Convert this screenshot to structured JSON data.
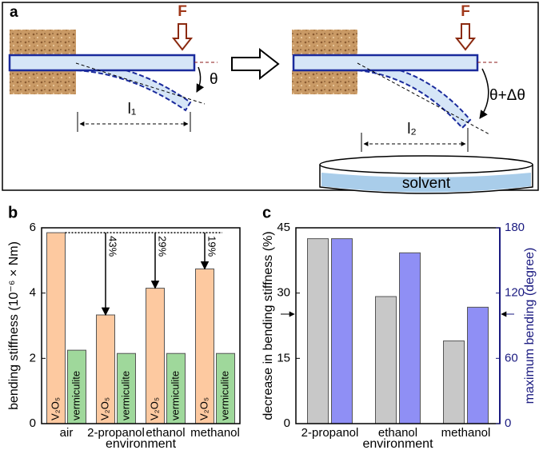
{
  "diagram": {
    "panel_label": "a",
    "force_left": "F",
    "angle_left": "θ",
    "length_left": "l₁",
    "force_right": "F",
    "angle_right": "θ+Δθ",
    "length_right": "l₂",
    "container": "solvent"
  },
  "chart_data": [
    {
      "type": "bar",
      "panel_label": "b",
      "xlabel": "environment",
      "ylabel": "bending stiffness (10⁻⁶ × Nm)",
      "categories": [
        "air",
        "2-propanol",
        "ethanol",
        "methanol"
      ],
      "series": [
        {
          "name": "V₂O₅",
          "color": "#fdc9a0",
          "values": [
            5.85,
            3.33,
            4.15,
            4.74
          ]
        },
        {
          "name": "vermiculite",
          "color": "#9fd89b",
          "values": [
            2.25,
            2.15,
            2.15,
            2.15
          ]
        }
      ],
      "decrease_labels": [
        null,
        "43%",
        "29%",
        "19%"
      ],
      "ylim": [
        0,
        6
      ],
      "yticks": [
        0,
        2,
        4,
        6
      ]
    },
    {
      "type": "bar",
      "panel_label": "c",
      "xlabel": "environment",
      "ylabel": "decrease in bending stiffness (%)",
      "y2label": "maximum bending (degree)",
      "categories": [
        "2-propanol",
        "ethanol",
        "methanol"
      ],
      "series": [
        {
          "color": "#c8c8c8",
          "values": [
            42.5,
            29.2,
            19.0
          ]
        },
        {
          "color": "#8f8ff5",
          "axis": "y2",
          "values": [
            170,
            157,
            107
          ]
        }
      ],
      "ylim": [
        0,
        45
      ],
      "yticks": [
        0,
        15,
        30,
        45
      ],
      "y2lim": [
        0,
        180
      ],
      "y2ticks": [
        0,
        60,
        120,
        180
      ],
      "y2color": "#1a1a80"
    }
  ]
}
